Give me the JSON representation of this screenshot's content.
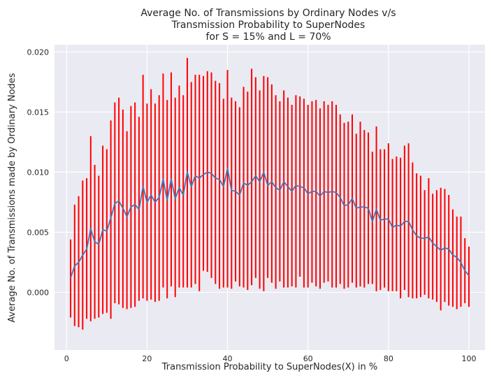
{
  "chart_data": {
    "type": "line",
    "title": [
      "Average No. of Transmissions by Ordinary Nodes v/s",
      "Transmission Probability to SuperNodes",
      "for S = 15% and L = 70%"
    ],
    "xlabel": "Transmission Probability to SuperNodes(X) in %",
    "ylabel": "Average No. of Transmissions made by Ordinary Nodes",
    "xlim": [
      -3,
      104
    ],
    "ylim": [
      -0.0048,
      0.0206
    ],
    "xticks": [
      0,
      20,
      40,
      60,
      80,
      100
    ],
    "xtick_labels": [
      "0",
      "20",
      "40",
      "60",
      "80",
      "100"
    ],
    "yticks": [
      0.0,
      0.005,
      0.01,
      0.015,
      0.02
    ],
    "ytick_labels": [
      "0.000",
      "0.005",
      "0.010",
      "0.015",
      "0.020"
    ],
    "grid": true,
    "colors": {
      "mean_line": "#4c72b0",
      "error_bars": "#ff0000",
      "background": "#eaeaf2",
      "grid": "#ffffff"
    },
    "series": [
      {
        "style": "line-with-errorbars",
        "x": [
          1,
          2,
          3,
          4,
          5,
          6,
          7,
          8,
          9,
          10,
          11,
          12,
          13,
          14,
          15,
          16,
          17,
          18,
          19,
          20,
          21,
          22,
          23,
          24,
          25,
          26,
          27,
          28,
          29,
          30,
          31,
          32,
          33,
          34,
          35,
          36,
          37,
          38,
          39,
          40,
          41,
          42,
          43,
          44,
          45,
          46,
          47,
          48,
          49,
          50,
          51,
          52,
          53,
          54,
          55,
          56,
          57,
          58,
          59,
          60,
          61,
          62,
          63,
          64,
          65,
          66,
          67,
          68,
          69,
          70,
          71,
          72,
          73,
          74,
          75,
          76,
          77,
          78,
          79,
          80,
          81,
          82,
          83,
          84,
          85,
          86,
          87,
          88,
          89,
          90,
          91,
          92,
          93,
          94,
          95,
          96,
          97,
          98,
          99,
          100
        ],
        "y": [
          0.0012,
          0.0022,
          0.0025,
          0.0031,
          0.0036,
          0.0053,
          0.0042,
          0.004,
          0.0052,
          0.0051,
          0.0062,
          0.0074,
          0.0076,
          0.007,
          0.0063,
          0.0071,
          0.0073,
          0.0069,
          0.0088,
          0.0075,
          0.0081,
          0.0075,
          0.0079,
          0.0094,
          0.0077,
          0.0094,
          0.0078,
          0.0087,
          0.0081,
          0.01,
          0.0088,
          0.0097,
          0.0095,
          0.0098,
          0.01,
          0.0099,
          0.0095,
          0.0094,
          0.0088,
          0.0103,
          0.0085,
          0.0084,
          0.0081,
          0.0091,
          0.0089,
          0.0092,
          0.0097,
          0.0092,
          0.01,
          0.0089,
          0.0092,
          0.0087,
          0.0085,
          0.0092,
          0.0088,
          0.0084,
          0.0089,
          0.0088,
          0.0087,
          0.0082,
          0.0084,
          0.0084,
          0.008,
          0.0084,
          0.0083,
          0.0084,
          0.0083,
          0.0079,
          0.0072,
          0.0073,
          0.0078,
          0.007,
          0.0071,
          0.0071,
          0.007,
          0.0059,
          0.0069,
          0.006,
          0.0061,
          0.0061,
          0.0054,
          0.0056,
          0.0055,
          0.0059,
          0.0059,
          0.0052,
          0.0047,
          0.0045,
          0.0045,
          0.0046,
          0.0041,
          0.0038,
          0.0035,
          0.0037,
          0.0036,
          0.0031,
          0.0029,
          0.0025,
          0.0018,
          0.0014
        ],
        "yerr_upper": [
          0.0044,
          0.0073,
          0.008,
          0.0093,
          0.0095,
          0.013,
          0.0106,
          0.0097,
          0.0122,
          0.0119,
          0.0143,
          0.0158,
          0.0162,
          0.0152,
          0.0134,
          0.0155,
          0.0158,
          0.0146,
          0.0181,
          0.0157,
          0.0169,
          0.0157,
          0.0164,
          0.0182,
          0.016,
          0.0183,
          0.0162,
          0.0172,
          0.0164,
          0.0195,
          0.0175,
          0.0181,
          0.0181,
          0.018,
          0.0184,
          0.0183,
          0.0176,
          0.0174,
          0.0161,
          0.0185,
          0.0162,
          0.0159,
          0.0154,
          0.0171,
          0.0167,
          0.0186,
          0.0179,
          0.0168,
          0.018,
          0.0179,
          0.0173,
          0.0164,
          0.0159,
          0.0168,
          0.0162,
          0.0156,
          0.0164,
          0.0163,
          0.0161,
          0.0156,
          0.0159,
          0.016,
          0.0153,
          0.0159,
          0.0156,
          0.0159,
          0.0156,
          0.0148,
          0.0141,
          0.0142,
          0.0148,
          0.0132,
          0.0142,
          0.0135,
          0.0133,
          0.0117,
          0.0138,
          0.0119,
          0.0119,
          0.0124,
          0.0111,
          0.0113,
          0.0112,
          0.0122,
          0.0124,
          0.0108,
          0.0099,
          0.0097,
          0.0085,
          0.0095,
          0.0082,
          0.0085,
          0.0087,
          0.0086,
          0.0081,
          0.0069,
          0.0063,
          0.0063,
          0.0045,
          0.0038
        ],
        "yerr_lower": [
          -0.0021,
          -0.0028,
          -0.0029,
          -0.0031,
          -0.0022,
          -0.0024,
          -0.0022,
          -0.0021,
          -0.0018,
          -0.0017,
          -0.0022,
          -0.0009,
          -0.001,
          -0.0013,
          -0.0014,
          -0.0013,
          -0.0012,
          -0.0007,
          -0.0005,
          -0.0007,
          -0.0006,
          -0.0008,
          -0.0007,
          0.0004,
          -0.0005,
          0.0005,
          -0.0004,
          0.0004,
          0.0004,
          0.0004,
          0.0004,
          0.0007,
          0.0001,
          0.0018,
          0.0017,
          0.0012,
          0.0007,
          0.0003,
          0.0004,
          0.0004,
          0.0003,
          0.0009,
          0.0005,
          0.0004,
          0.0002,
          0.0006,
          0.0012,
          0.0003,
          0.0001,
          0.0012,
          0.0008,
          0.0003,
          0.0009,
          0.0004,
          0.0004,
          0.0005,
          0.0004,
          0.0013,
          0.0004,
          0.0004,
          0.0008,
          0.0005,
          0.0003,
          0.0008,
          0.0009,
          0.0004,
          0.0004,
          0.0007,
          0.0003,
          0.0004,
          0.0008,
          0.0004,
          0.0005,
          0.0004,
          0.0007,
          0.0007,
          0.0001,
          0.0002,
          0.0004,
          0.0001,
          0.0001,
          0.0001,
          -0.0005,
          0.0002,
          -0.0004,
          -0.0005,
          -0.0005,
          -0.0004,
          -0.0002,
          -0.0005,
          -0.0006,
          -0.0008,
          -0.0015,
          -0.0008,
          -0.0011,
          -0.0012,
          -0.0014,
          -0.0012,
          -0.0009,
          -0.0012
        ]
      }
    ]
  }
}
